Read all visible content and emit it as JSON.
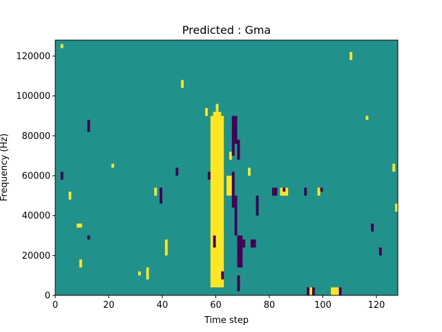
{
  "chart_data": {
    "type": "heatmap",
    "title": "Predicted : Gma",
    "xlabel": "Time step",
    "ylabel": "Frequency (Hz)",
    "xlim": [
      0,
      128
    ],
    "ylim": [
      0,
      128000
    ],
    "xticks": [
      0,
      20,
      40,
      60,
      80,
      100,
      120
    ],
    "yticks": [
      0,
      20000,
      40000,
      60000,
      80000,
      100000,
      120000
    ],
    "grid": false,
    "colormap": "viridis",
    "value_colors": {
      "low": "#440154",
      "mid": "#21918c",
      "high": "#fde725"
    },
    "background_value": "mid",
    "cells_note_units": "each cell = [time_start, time_end, freq_start, freq_end, value]",
    "cells": [
      [
        58,
        63,
        4000,
        90000,
        "high"
      ],
      [
        59,
        62,
        90000,
        92000,
        "high"
      ],
      [
        60,
        61,
        92000,
        96000,
        "high"
      ],
      [
        57,
        58,
        58000,
        62000,
        "low"
      ],
      [
        64,
        66,
        50000,
        60000,
        "high"
      ],
      [
        65,
        66,
        68000,
        72000,
        "high"
      ],
      [
        66,
        67,
        70000,
        90000,
        "low"
      ],
      [
        67,
        68,
        76000,
        90000,
        "low"
      ],
      [
        68,
        69,
        68000,
        78000,
        "low"
      ],
      [
        66,
        67,
        44000,
        62000,
        "low"
      ],
      [
        67,
        68,
        30000,
        50000,
        "low"
      ],
      [
        68,
        70,
        14000,
        30000,
        "low"
      ],
      [
        68,
        69,
        2000,
        10000,
        "low"
      ],
      [
        70,
        71,
        24000,
        28000,
        "low"
      ],
      [
        73,
        75,
        24000,
        28000,
        "low"
      ],
      [
        72,
        73,
        60000,
        64000,
        "high"
      ],
      [
        75,
        76,
        40000,
        50000,
        "low"
      ],
      [
        81,
        83,
        50000,
        54000,
        "low"
      ],
      [
        84,
        87,
        50000,
        54000,
        "high"
      ],
      [
        85,
        86,
        52000,
        54000,
        "low"
      ],
      [
        95,
        96,
        0,
        4000,
        "high"
      ],
      [
        94,
        95,
        0,
        4000,
        "low"
      ],
      [
        96,
        97,
        0,
        4000,
        "low"
      ],
      [
        103,
        106,
        0,
        4000,
        "high"
      ],
      [
        106,
        107,
        0,
        4000,
        "low"
      ],
      [
        2,
        3,
        124000,
        126000,
        "high"
      ],
      [
        2,
        3,
        58000,
        62000,
        "low"
      ],
      [
        5,
        6,
        48000,
        52000,
        "high"
      ],
      [
        8,
        10,
        34000,
        36000,
        "high"
      ],
      [
        9,
        10,
        14000,
        18000,
        "high"
      ],
      [
        12,
        13,
        28000,
        30000,
        "low"
      ],
      [
        12,
        13,
        82000,
        88000,
        "low"
      ],
      [
        21,
        22,
        64000,
        66000,
        "high"
      ],
      [
        31,
        32,
        10000,
        12000,
        "high"
      ],
      [
        34,
        35,
        8000,
        14000,
        "high"
      ],
      [
        37,
        38,
        50000,
        54000,
        "high"
      ],
      [
        39,
        40,
        46000,
        54000,
        "low"
      ],
      [
        41,
        42,
        20000,
        28000,
        "high"
      ],
      [
        45,
        46,
        60000,
        64000,
        "low"
      ],
      [
        47,
        48,
        104000,
        108000,
        "high"
      ],
      [
        56,
        57,
        90000,
        94000,
        "high"
      ],
      [
        59,
        60,
        24000,
        30000,
        "low"
      ],
      [
        62,
        63,
        8000,
        12000,
        "low"
      ],
      [
        93,
        94,
        50000,
        54000,
        "low"
      ],
      [
        98,
        99,
        50000,
        54000,
        "high"
      ],
      [
        99,
        100,
        52000,
        54000,
        "low"
      ],
      [
        110,
        111,
        118000,
        122000,
        "high"
      ],
      [
        116,
        117,
        88000,
        90000,
        "high"
      ],
      [
        121,
        122,
        20000,
        24000,
        "low"
      ],
      [
        126,
        127,
        62000,
        66000,
        "high"
      ],
      [
        127,
        128,
        42000,
        46000,
        "high"
      ],
      [
        118,
        119,
        32000,
        36000,
        "low"
      ]
    ]
  }
}
